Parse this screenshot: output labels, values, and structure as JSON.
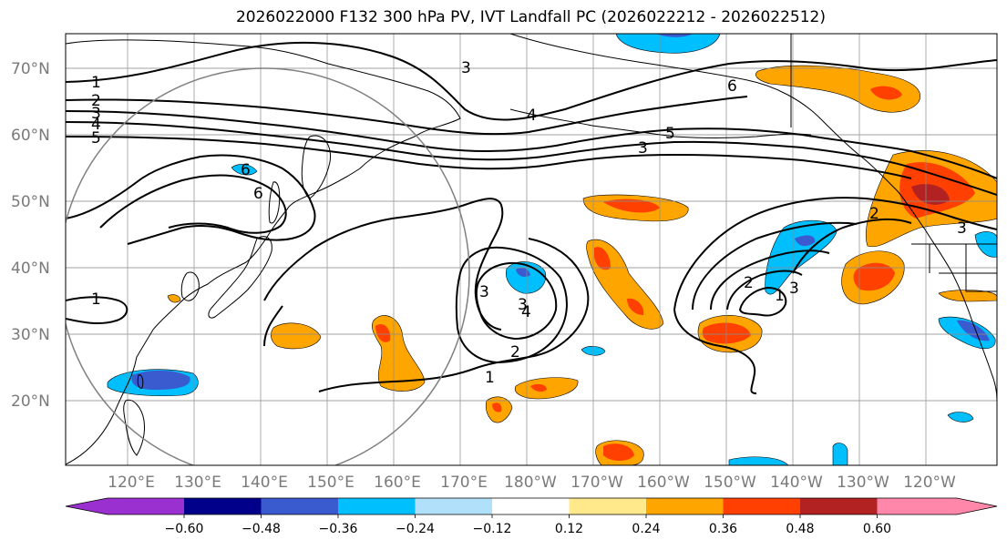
{
  "title": "2026022000 F132 300 hPa PV, IVT Landfall PC (2026022212 - 2026022512)",
  "lat_labels": [
    "70°N",
    "60°N",
    "50°N",
    "40°N",
    "30°N",
    "20°N"
  ],
  "lon_labels": [
    "120°E",
    "130°E",
    "140°E",
    "150°E",
    "160°E",
    "170°E",
    "180°W",
    "170°W",
    "160°W",
    "150°W",
    "140°W",
    "130°W",
    "120°W"
  ],
  "colorbar": {
    "ticks": [
      "−0.60",
      "−0.48",
      "−0.36",
      "−0.24",
      "−0.12",
      "0.12",
      "0.24",
      "0.36",
      "0.48",
      "0.60"
    ],
    "colors": [
      "#9b30d0",
      "#00008b",
      "#3a5bcf",
      "#00bfff",
      "#b0e0fa",
      "#ffffff",
      "#ffe98a",
      "#ffa500",
      "#ff4000",
      "#b22222",
      "#ff88aa"
    ]
  },
  "contour_labels": [
    "1",
    "2",
    "3",
    "4",
    "5",
    "1",
    "6",
    "6",
    "3",
    "4",
    "3",
    "5",
    "6",
    "3",
    "3",
    "4",
    "2",
    "1",
    "2",
    "1",
    "3",
    "2",
    "3"
  ]
}
